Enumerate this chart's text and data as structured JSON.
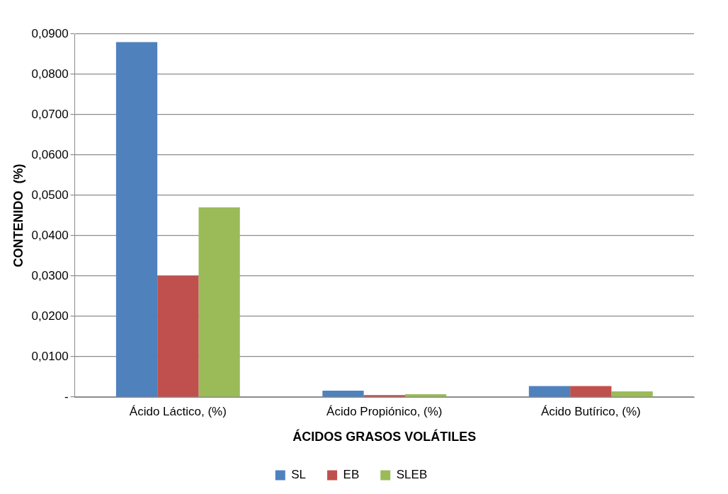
{
  "chart_data": {
    "type": "bar",
    "xlabel": "ÁCIDOS GRASOS VOLÁTILES",
    "ylabel": "CONTENIDO  (%)",
    "categories": [
      "Ácido Láctico, (%)",
      "Ácido Propiónico, (%)",
      "Ácido Butírico, (%)"
    ],
    "series": [
      {
        "name": "SL",
        "color": "#4f81bd",
        "values": [
          0.088,
          0.0016,
          0.0027
        ]
      },
      {
        "name": "EB",
        "color": "#c0504d",
        "values": [
          0.03,
          0.0005,
          0.0027
        ]
      },
      {
        "name": "SLEB",
        "color": "#9bbb59",
        "values": [
          0.047,
          0.0007,
          0.0014
        ]
      }
    ],
    "ylim": [
      0,
      0.09
    ],
    "yticks": [
      {
        "value": 0,
        "label": "-"
      },
      {
        "value": 0.01,
        "label": "0,0100"
      },
      {
        "value": 0.02,
        "label": "0,0200"
      },
      {
        "value": 0.03,
        "label": "0,0300"
      },
      {
        "value": 0.04,
        "label": "0,0400"
      },
      {
        "value": 0.05,
        "label": "0,0500"
      },
      {
        "value": 0.06,
        "label": "0,0600"
      },
      {
        "value": 0.07,
        "label": "0,0700"
      },
      {
        "value": 0.08,
        "label": "0,0800"
      },
      {
        "value": 0.09,
        "label": "0,0900"
      }
    ],
    "grid": "y",
    "legend": "bottom"
  }
}
